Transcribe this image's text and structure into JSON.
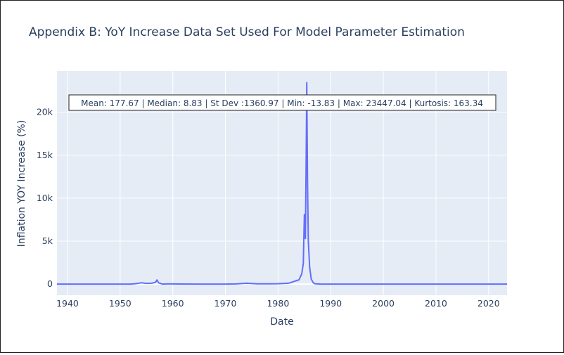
{
  "chart_data": {
    "type": "line",
    "title": "Appendix B: YoY Increase Data Set Used For Model Parameter Estimation",
    "xlabel": "Date",
    "ylabel": "Inflation YOY Increase (%)",
    "xlim": [
      1938,
      2023.5
    ],
    "ylim": [
      -1300,
      24800
    ],
    "x_ticks": [
      1940,
      1950,
      1960,
      1970,
      1980,
      1990,
      2000,
      2010,
      2020
    ],
    "y_ticks": [
      {
        "value": 0,
        "label": "0"
      },
      {
        "value": 5000,
        "label": "5k"
      },
      {
        "value": 10000,
        "label": "10k"
      },
      {
        "value": 15000,
        "label": "15k"
      },
      {
        "value": 20000,
        "label": "20k"
      }
    ],
    "annotation": "Mean: 177.67 | Median: 8.83 | St Dev :1360.97 | Min: -13.83 | Max: 23447.04 | Kurtosis: 163.34",
    "grid": true,
    "line_color": "#636efa",
    "background_color": "#e5ecf6",
    "series": [
      {
        "x": [
          1938,
          1945,
          1952,
          1953,
          1954,
          1955,
          1956,
          1956.7,
          1957,
          1957.3,
          1958,
          1959,
          1960,
          1965,
          1970,
          1972,
          1974,
          1976,
          1978,
          1980,
          1982,
          1983,
          1984,
          1984.5,
          1984.8,
          1985,
          1985.2,
          1985.35,
          1985.45,
          1985.6,
          1985.75,
          1986,
          1986.3,
          1986.7,
          1987,
          1988,
          1990,
          2000,
          2010,
          2023.5
        ],
        "y": [
          0,
          0,
          0,
          50,
          150,
          80,
          100,
          200,
          480,
          150,
          0,
          20,
          15,
          0,
          0,
          20,
          100,
          30,
          30,
          40,
          100,
          300,
          500,
          1200,
          2400,
          8100,
          5300,
          15000,
          23447,
          12000,
          5000,
          2000,
          600,
          150,
          40,
          0,
          0,
          0,
          0,
          0
        ]
      }
    ]
  }
}
